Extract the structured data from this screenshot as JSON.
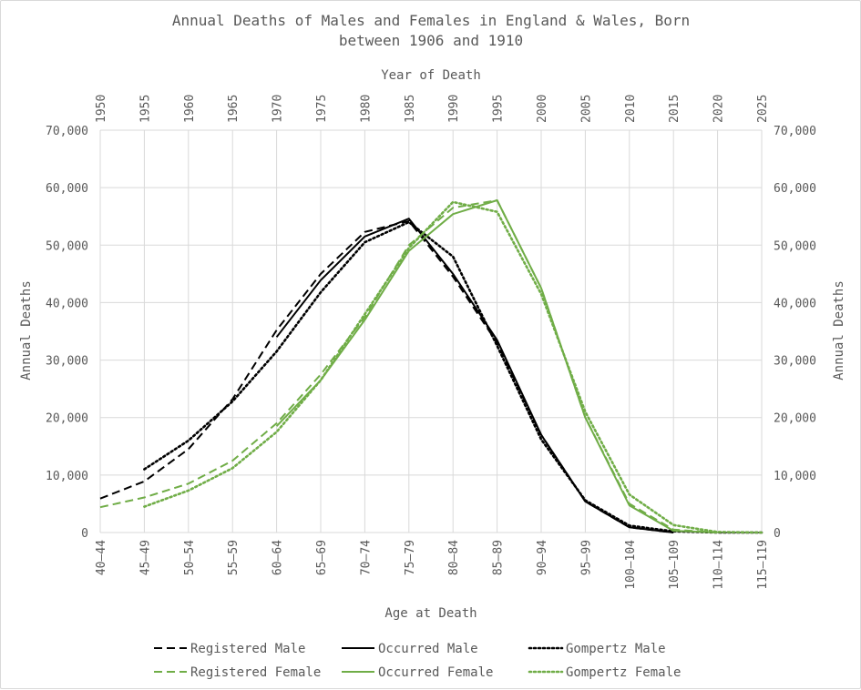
{
  "chart_data": {
    "type": "line",
    "title": "Annual Deaths of Males and Females in England & Wales, Born",
    "title_line2": "between 1906 and 1910",
    "xlabel": "Age at Death",
    "x2label": "Year of Death",
    "ylabel": "Annual Deaths",
    "y2label": "Annual Deaths",
    "ylim": [
      0,
      70000
    ],
    "yticks": [
      0,
      10000,
      20000,
      30000,
      40000,
      50000,
      60000,
      70000
    ],
    "ytick_labels": [
      "0",
      "10,000",
      "20,000",
      "30,000",
      "40,000",
      "50,000",
      "60,000",
      "70,000"
    ],
    "grid": true,
    "legend_position": "bottom",
    "categories": [
      "40–44",
      "45–49",
      "50–54",
      "55–59",
      "60–64",
      "65–69",
      "70–74",
      "75–79",
      "80–84",
      "85–89",
      "90–94",
      "95–99",
      "100–104",
      "105–109",
      "110–114",
      "115–119"
    ],
    "top_axis_years": [
      "1950",
      "1955",
      "1960",
      "1965",
      "1970",
      "1975",
      "1980",
      "1985",
      "1990",
      "1995",
      "2000",
      "2005",
      "2010",
      "2015",
      "2020",
      "2025"
    ],
    "series": [
      {
        "name": "Registered Male",
        "color": "#000000",
        "style": "dashed",
        "values": [
          5900,
          8900,
          14500,
          23200,
          35200,
          45000,
          52300,
          54200,
          44500,
          33000,
          17000,
          5400,
          900,
          0,
          null,
          null
        ]
      },
      {
        "name": "Occurred Male",
        "color": "#000000",
        "style": "solid",
        "values": [
          null,
          null,
          null,
          null,
          34000,
          43900,
          51500,
          54600,
          45000,
          33500,
          17000,
          5400,
          900,
          0,
          null,
          null
        ]
      },
      {
        "name": "Gompertz Male",
        "color": "#000000",
        "style": "dotted",
        "values": [
          null,
          11000,
          16000,
          22800,
          31500,
          41800,
          50500,
          54000,
          48000,
          32500,
          16200,
          5600,
          1200,
          200,
          0,
          0
        ]
      },
      {
        "name": "Registered Female",
        "color": "#70ad47",
        "style": "dashed",
        "values": [
          4400,
          6100,
          8500,
          12500,
          19000,
          27500,
          37500,
          50000,
          56500,
          57800,
          42500,
          20000,
          5000,
          500,
          0,
          null
        ]
      },
      {
        "name": "Occurred Female",
        "color": "#70ad47",
        "style": "solid",
        "values": [
          null,
          null,
          null,
          null,
          18500,
          26500,
          37000,
          49000,
          55400,
          57800,
          42500,
          20000,
          4700,
          300,
          0,
          null
        ]
      },
      {
        "name": "Gompertz Female",
        "color": "#70ad47",
        "style": "dotted",
        "values": [
          null,
          4500,
          7300,
          11200,
          17500,
          26500,
          38000,
          49500,
          57500,
          55800,
          41500,
          21000,
          6600,
          1300,
          100,
          0
        ]
      }
    ]
  }
}
